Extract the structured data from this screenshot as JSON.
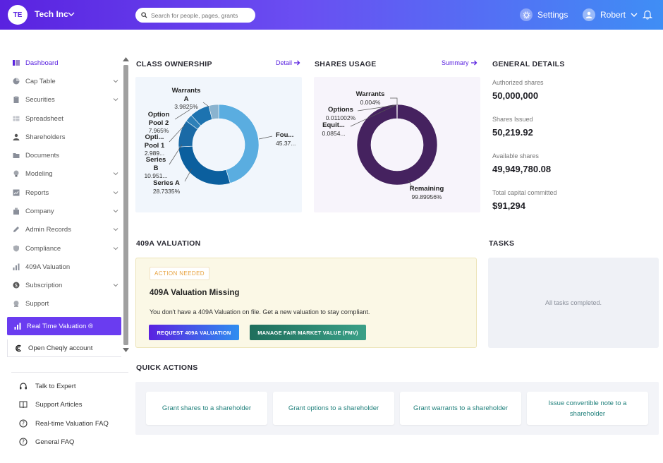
{
  "header": {
    "logo_initials": "TE",
    "company_name": "Tech Inc",
    "search_placeholder": "Search for people, pages, grants",
    "settings_label": "Settings",
    "user_name": "Robert"
  },
  "sidebar": {
    "items": [
      {
        "label": "Dashboard",
        "icon": "dashboard-icon",
        "expandable": false,
        "active": true
      },
      {
        "label": "Cap Table",
        "icon": "pie-chart-icon",
        "expandable": true
      },
      {
        "label": "Securities",
        "icon": "clipboard-icon",
        "expandable": true
      },
      {
        "label": "Spreadsheet",
        "icon": "spreadsheet-icon",
        "expandable": false
      },
      {
        "label": "Shareholders",
        "icon": "person-icon",
        "expandable": false
      },
      {
        "label": "Documents",
        "icon": "folder-icon",
        "expandable": false
      },
      {
        "label": "Modeling",
        "icon": "lightbulb-icon",
        "expandable": true
      },
      {
        "label": "Reports",
        "icon": "reports-icon",
        "expandable": true
      },
      {
        "label": "Company",
        "icon": "building-icon",
        "expandable": true
      },
      {
        "label": "Admin Records",
        "icon": "pencil-icon",
        "expandable": true
      },
      {
        "label": "Compliance",
        "icon": "shield-icon",
        "expandable": true
      },
      {
        "label": "409A Valuation",
        "icon": "bar-chart-icon",
        "expandable": false
      },
      {
        "label": "Subscription",
        "icon": "dollar-icon",
        "expandable": true
      },
      {
        "label": "Support",
        "icon": "support-icon",
        "expandable": false
      }
    ],
    "realtime_label": "Real Time Valuation ®",
    "cheqly_label": "Open Cheqly account",
    "help": [
      {
        "label": "Talk to Expert",
        "icon": "headset-icon"
      },
      {
        "label": "Support Articles",
        "icon": "book-icon"
      },
      {
        "label": "Real-time Valuation FAQ",
        "icon": "question-icon"
      },
      {
        "label": "General FAQ",
        "icon": "question-icon"
      }
    ]
  },
  "class_ownership": {
    "title": "CLASS OWNERSHIP",
    "link": "Detail",
    "labels": [
      {
        "name": "Warrants A",
        "value": "3.9825%"
      },
      {
        "name": "Option Pool 2",
        "value": "7.965%"
      },
      {
        "name": "Opti... Pool 1",
        "value": "2.989..."
      },
      {
        "name": "Series B",
        "value": "10.951..."
      },
      {
        "name": "Series A",
        "value": "28.7335%"
      },
      {
        "name": "Fou...",
        "value": "45.37..."
      }
    ]
  },
  "shares_usage": {
    "title": "SHARES USAGE",
    "link": "Summary",
    "labels": [
      {
        "name": "Warrants",
        "value": "0.004%"
      },
      {
        "name": "Options",
        "value": "0.011002%"
      },
      {
        "name": "Equit...",
        "value": "0.0854..."
      },
      {
        "name": "Remaining",
        "value": "99.89956%"
      }
    ]
  },
  "chart_data": [
    {
      "type": "pie",
      "title": "CLASS OWNERSHIP",
      "donut": true,
      "categories": [
        "Founders",
        "Series A",
        "Series B",
        "Option Pool 1",
        "Option Pool 2",
        "Warrants A"
      ],
      "values": [
        45.37,
        28.7335,
        10.951,
        2.989,
        7.965,
        3.9825
      ],
      "colors": [
        "#5aade0",
        "#0b5f9e",
        "#1a6aa6",
        "#2e80b8",
        "#1d73b0",
        "#8ab3cf"
      ]
    },
    {
      "type": "pie",
      "title": "SHARES USAGE",
      "donut": true,
      "categories": [
        "Remaining",
        "Equit...",
        "Options",
        "Warrants"
      ],
      "values": [
        99.89956,
        0.0854,
        0.011002,
        0.004
      ],
      "colors": [
        "#45225f",
        "#7a5a92",
        "#9a86ab",
        "#b9abc6"
      ]
    }
  ],
  "general_details": {
    "title": "GENERAL DETAILS",
    "authorized_label": "Authorized shares",
    "authorized_value": "50,000,000",
    "issued_label": "Shares Issued",
    "issued_value": "50,219.92",
    "available_label": "Available shares",
    "available_value": "49,949,780.08",
    "capital_label": "Total capital committed",
    "capital_value": "$91,294"
  },
  "valuation": {
    "section_title": "409A VALUATION",
    "badge": "ACTION NEEDED",
    "title": "409A Valuation Missing",
    "body": "You don't have a 409A Valuation on file. Get a new valuation to stay compliant.",
    "primary_button": "REQUEST 409A VALUATION",
    "secondary_button": "MANAGE FAIR MARKET VALUE (FMV)"
  },
  "tasks": {
    "title": "TASKS",
    "empty_text": "All tasks completed."
  },
  "quick_actions": {
    "title": "QUICK ACTIONS",
    "items": [
      "Grant shares to a shareholder",
      "Grant options to a shareholder",
      "Grant warrants to a shareholder",
      "Issue convertible note to a shareholder"
    ]
  },
  "colors": {
    "brand": "#5a22e0",
    "accent_teal": "#1e7f7a",
    "warning": "#e7a23e"
  }
}
